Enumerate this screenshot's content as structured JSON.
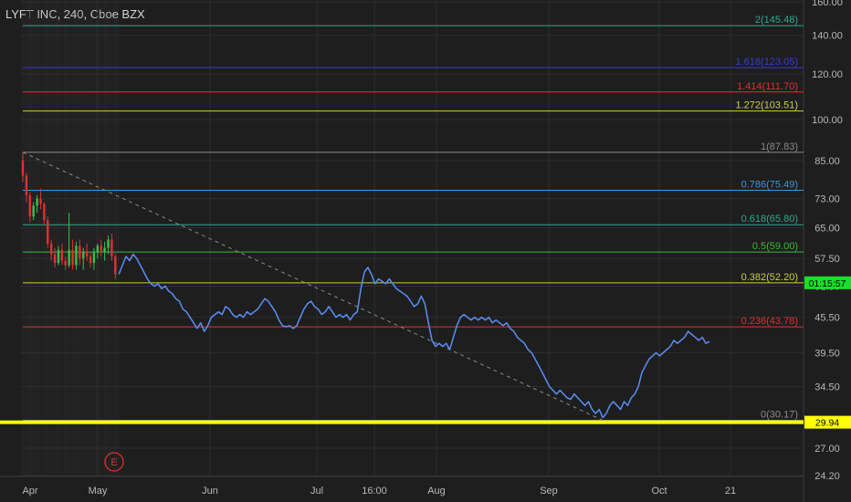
{
  "header": {
    "title": "LYFT INC, 240, Cboe BZX"
  },
  "colors": {
    "background": "#1e1e1f",
    "price_line": "#5b8ff0",
    "up_candle": "#36c24a",
    "down_candle": "#e03131",
    "dashed_trend": "#8a8a8a",
    "low_line": "#ffff00"
  },
  "chart_data": {
    "type": "line",
    "title": "LYFT INC, 240, Cboe BZX",
    "ylim": [
      24.2,
      160
    ],
    "y_scale": "log",
    "grid": true,
    "y_ticks": [
      "160.00",
      "140.00",
      "120.00",
      "100.00",
      "85.00",
      "73.00",
      "65.00",
      "57.50",
      "51.50",
      "45.50",
      "39.50",
      "34.50",
      "27.00",
      "24.20"
    ],
    "x_ticks": [
      "Apr",
      "May",
      "Jun",
      "Jul",
      "16:00",
      "Aug",
      "Sep",
      "Oct",
      "21"
    ],
    "fib_levels": [
      {
        "ratio": "2",
        "value": "145.48",
        "label": "2(145.48)",
        "color": "#2fa88a"
      },
      {
        "ratio": "1.618",
        "value": "123.05",
        "label": "1.618(123.05)",
        "color": "#3a3ad6"
      },
      {
        "ratio": "1.414",
        "value": "111.70",
        "label": "1.414(111.70)",
        "color": "#e03131"
      },
      {
        "ratio": "1.272",
        "value": "103.51",
        "label": "1.272(103.51)",
        "color": "#c8d23a"
      },
      {
        "ratio": "1",
        "value": "87.83",
        "label": "1(87.83)",
        "color": "#8a8a8a"
      },
      {
        "ratio": "0.786",
        "value": "75.49",
        "label": "0.786(75.49)",
        "color": "#3a9ad9"
      },
      {
        "ratio": "0.618",
        "value": "65.80",
        "label": "0.618(65.80)",
        "color": "#2fa88a"
      },
      {
        "ratio": "0.5",
        "value": "59.00",
        "label": "0.5(59.00)",
        "color": "#3cb83c"
      },
      {
        "ratio": "0.382",
        "value": "52.20",
        "label": "0.382(52.20)",
        "color": "#c8d23a"
      },
      {
        "ratio": "0.236",
        "value": "43.78",
        "label": "0.236(43.78)",
        "color": "#e03131"
      },
      {
        "ratio": "0",
        "value": "30.17",
        "label": "0(30.17)",
        "color": "#8a8a8a"
      }
    ],
    "badges": [
      {
        "text": "01:15:57",
        "value": 52.2,
        "bg": "#16e02a"
      },
      {
        "text": "29.94",
        "value": 29.94,
        "bg": "#ffff00"
      }
    ],
    "earnings_marker": "E",
    "candles": [
      {
        "x": 0.0,
        "o": 85.0,
        "h": 87.8,
        "l": 78.0,
        "c": 80.0
      },
      {
        "x": 0.5,
        "o": 80.0,
        "h": 81.0,
        "l": 72.0,
        "c": 74.0
      },
      {
        "x": 1.0,
        "o": 74.0,
        "h": 75.0,
        "l": 66.5,
        "c": 68.0
      },
      {
        "x": 1.5,
        "o": 68.0,
        "h": 72.0,
        "l": 67.0,
        "c": 71.0
      },
      {
        "x": 2.0,
        "o": 71.0,
        "h": 74.0,
        "l": 69.0,
        "c": 73.0
      },
      {
        "x": 2.5,
        "o": 73.0,
        "h": 76.0,
        "l": 70.0,
        "c": 71.5
      },
      {
        "x": 3.0,
        "o": 71.5,
        "h": 72.0,
        "l": 66.0,
        "c": 67.0
      },
      {
        "x": 3.5,
        "o": 67.0,
        "h": 68.0,
        "l": 60.0,
        "c": 61.0
      },
      {
        "x": 4.0,
        "o": 61.0,
        "h": 62.0,
        "l": 57.0,
        "c": 58.5
      },
      {
        "x": 4.5,
        "o": 58.5,
        "h": 60.0,
        "l": 55.5,
        "c": 56.5
      },
      {
        "x": 5.0,
        "o": 56.5,
        "h": 60.5,
        "l": 56.0,
        "c": 59.5
      },
      {
        "x": 5.5,
        "o": 59.5,
        "h": 61.0,
        "l": 56.0,
        "c": 57.0
      },
      {
        "x": 6.0,
        "o": 57.0,
        "h": 58.0,
        "l": 55.0,
        "c": 56.0
      },
      {
        "x": 6.5,
        "o": 56.0,
        "h": 69.0,
        "l": 55.5,
        "c": 59.5
      },
      {
        "x": 7.0,
        "o": 59.5,
        "h": 62.0,
        "l": 55.0,
        "c": 56.0
      },
      {
        "x": 7.5,
        "o": 56.0,
        "h": 61.5,
        "l": 55.0,
        "c": 60.5
      },
      {
        "x": 8.0,
        "o": 60.5,
        "h": 62.0,
        "l": 56.0,
        "c": 57.5
      },
      {
        "x": 8.5,
        "o": 57.5,
        "h": 60.0,
        "l": 55.0,
        "c": 59.0
      },
      {
        "x": 9.0,
        "o": 59.0,
        "h": 61.0,
        "l": 57.0,
        "c": 58.0
      },
      {
        "x": 9.5,
        "o": 58.0,
        "h": 59.0,
        "l": 55.5,
        "c": 56.5
      },
      {
        "x": 10.0,
        "o": 56.5,
        "h": 60.0,
        "l": 55.0,
        "c": 59.0
      },
      {
        "x": 10.5,
        "o": 59.0,
        "h": 61.0,
        "l": 57.5,
        "c": 60.5
      },
      {
        "x": 11.0,
        "o": 60.5,
        "h": 62.0,
        "l": 58.0,
        "c": 59.0
      },
      {
        "x": 11.5,
        "o": 59.0,
        "h": 61.5,
        "l": 57.0,
        "c": 60.0
      },
      {
        "x": 12.0,
        "o": 60.0,
        "h": 63.0,
        "l": 58.5,
        "c": 62.0
      },
      {
        "x": 12.5,
        "o": 62.0,
        "h": 63.5,
        "l": 57.0,
        "c": 58.0
      },
      {
        "x": 13.0,
        "o": 58.0,
        "h": 58.5,
        "l": 53.0,
        "c": 54.0
      }
    ],
    "series": [
      {
        "values": [
          [
            13.5,
            54.0
          ],
          [
            14.0,
            56.0
          ],
          [
            14.5,
            58.0
          ],
          [
            15.0,
            57.0
          ],
          [
            15.5,
            58.5
          ],
          [
            16.0,
            57.5
          ],
          [
            16.5,
            56.0
          ],
          [
            17.0,
            54.5
          ],
          [
            17.5,
            53.0
          ],
          [
            18.0,
            52.0
          ],
          [
            18.5,
            51.5
          ],
          [
            19.0,
            52.0
          ],
          [
            19.5,
            51.0
          ],
          [
            20.0,
            51.5
          ],
          [
            20.5,
            50.5
          ],
          [
            21.0,
            50.0
          ],
          [
            21.5,
            49.0
          ],
          [
            22.0,
            48.5
          ],
          [
            22.5,
            47.0
          ],
          [
            23.0,
            46.5
          ],
          [
            23.5,
            45.5
          ],
          [
            24.0,
            44.5
          ],
          [
            24.5,
            43.5
          ],
          [
            25.0,
            44.5
          ],
          [
            25.5,
            43.0
          ],
          [
            26.0,
            44.0
          ],
          [
            26.5,
            45.5
          ],
          [
            27.0,
            46.0
          ],
          [
            27.5,
            46.5
          ],
          [
            28.0,
            46.0
          ],
          [
            28.5,
            47.5
          ],
          [
            29.0,
            47.0
          ],
          [
            29.5,
            46.0
          ],
          [
            30.0,
            45.5
          ],
          [
            30.5,
            46.0
          ],
          [
            31.0,
            45.5
          ],
          [
            31.5,
            46.5
          ],
          [
            32.0,
            46.0
          ],
          [
            32.5,
            46.5
          ],
          [
            33.0,
            47.0
          ],
          [
            33.5,
            48.0
          ],
          [
            34.0,
            49.0
          ],
          [
            34.5,
            48.5
          ],
          [
            35.0,
            47.5
          ],
          [
            35.5,
            46.5
          ],
          [
            36.0,
            45.0
          ],
          [
            36.5,
            44.0
          ],
          [
            37.0,
            43.8
          ],
          [
            37.5,
            44.0
          ],
          [
            38.0,
            43.5
          ],
          [
            38.5,
            44.0
          ],
          [
            39.0,
            45.5
          ],
          [
            39.5,
            47.0
          ],
          [
            40.0,
            48.0
          ],
          [
            40.5,
            48.5
          ],
          [
            41.0,
            47.5
          ],
          [
            41.5,
            47.0
          ],
          [
            42.0,
            46.0
          ],
          [
            42.5,
            46.5
          ],
          [
            43.0,
            47.5
          ],
          [
            43.5,
            46.5
          ],
          [
            44.0,
            45.5
          ],
          [
            44.5,
            46.0
          ],
          [
            45.0,
            45.5
          ],
          [
            45.5,
            46.0
          ],
          [
            46.0,
            45.0
          ],
          [
            46.5,
            46.0
          ],
          [
            47.0,
            46.5
          ],
          [
            47.5,
            51.0
          ],
          [
            48.0,
            54.5
          ],
          [
            48.5,
            55.5
          ],
          [
            49.0,
            54.0
          ],
          [
            49.5,
            52.0
          ],
          [
            50.0,
            53.0
          ],
          [
            50.5,
            52.5
          ],
          [
            51.0,
            52.0
          ],
          [
            51.5,
            53.0
          ],
          [
            52.0,
            52.0
          ],
          [
            52.5,
            51.0
          ],
          [
            53.0,
            50.5
          ],
          [
            53.5,
            50.0
          ],
          [
            54.0,
            49.5
          ],
          [
            54.5,
            48.5
          ],
          [
            55.0,
            47.5
          ],
          [
            55.5,
            48.0
          ],
          [
            56.0,
            49.5
          ],
          [
            56.5,
            48.0
          ],
          [
            57.0,
            44.5
          ],
          [
            57.5,
            41.5
          ],
          [
            58.0,
            40.5
          ],
          [
            58.5,
            41.0
          ],
          [
            59.0,
            40.5
          ],
          [
            59.5,
            41.0
          ],
          [
            60.0,
            40.0
          ],
          [
            60.5,
            42.0
          ],
          [
            61.0,
            44.0
          ],
          [
            61.5,
            45.5
          ],
          [
            62.0,
            46.0
          ],
          [
            62.5,
            45.5
          ],
          [
            63.0,
            45.0
          ],
          [
            63.5,
            45.5
          ],
          [
            64.0,
            45.0
          ],
          [
            64.5,
            45.5
          ],
          [
            65.0,
            45.0
          ],
          [
            65.5,
            45.5
          ],
          [
            66.0,
            44.5
          ],
          [
            66.5,
            45.0
          ],
          [
            67.0,
            44.5
          ],
          [
            67.5,
            44.0
          ],
          [
            68.0,
            44.5
          ],
          [
            68.5,
            43.5
          ],
          [
            69.0,
            43.0
          ],
          [
            69.5,
            42.0
          ],
          [
            70.0,
            41.5
          ],
          [
            70.5,
            41.0
          ],
          [
            71.0,
            40.0
          ],
          [
            71.5,
            39.5
          ],
          [
            72.0,
            38.5
          ],
          [
            72.5,
            37.5
          ],
          [
            73.0,
            36.5
          ],
          [
            73.5,
            35.5
          ],
          [
            74.0,
            34.5
          ],
          [
            74.5,
            34.0
          ],
          [
            75.0,
            33.5
          ],
          [
            75.5,
            34.0
          ],
          [
            76.0,
            33.5
          ],
          [
            76.5,
            33.0
          ],
          [
            77.0,
            32.8
          ],
          [
            77.5,
            33.5
          ],
          [
            78.0,
            33.0
          ],
          [
            78.5,
            32.5
          ],
          [
            79.0,
            32.0
          ],
          [
            79.5,
            32.5
          ],
          [
            80.0,
            31.5
          ],
          [
            80.5,
            31.0
          ],
          [
            81.0,
            31.5
          ],
          [
            81.5,
            30.5
          ],
          [
            82.0,
            31.0
          ],
          [
            82.5,
            32.0
          ],
          [
            83.0,
            32.5
          ],
          [
            83.5,
            32.0
          ],
          [
            84.0,
            31.5
          ],
          [
            84.5,
            32.5
          ],
          [
            85.0,
            32.0
          ],
          [
            85.5,
            33.0
          ],
          [
            86.0,
            33.5
          ],
          [
            86.5,
            34.5
          ],
          [
            87.0,
            36.5
          ],
          [
            87.5,
            37.5
          ],
          [
            88.0,
            38.5
          ],
          [
            88.5,
            39.0
          ],
          [
            89.0,
            39.5
          ],
          [
            89.5,
            39.0
          ],
          [
            90.0,
            39.5
          ],
          [
            90.5,
            40.0
          ],
          [
            91.0,
            40.5
          ],
          [
            91.5,
            41.5
          ],
          [
            92.0,
            41.0
          ],
          [
            92.5,
            41.5
          ],
          [
            93.0,
            42.0
          ],
          [
            93.5,
            43.0
          ],
          [
            94.0,
            42.5
          ],
          [
            94.5,
            42.0
          ],
          [
            95.0,
            41.5
          ],
          [
            95.5,
            42.0
          ],
          [
            96.0,
            41.0
          ],
          [
            96.5,
            41.3
          ]
        ]
      }
    ]
  }
}
